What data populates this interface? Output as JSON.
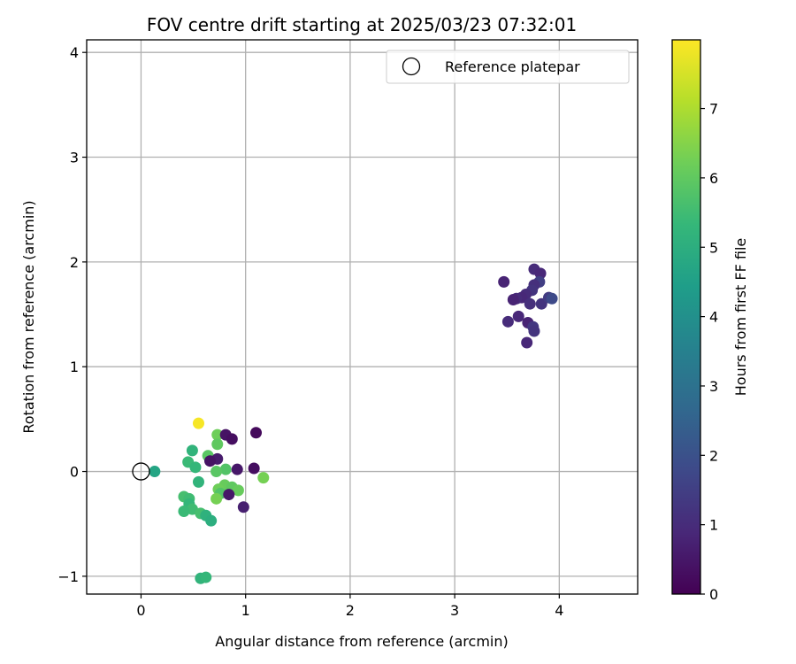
{
  "chart_data": {
    "type": "scatter",
    "title": "FOV centre drift starting at 2025/03/23 07:32:01",
    "xlabel": "Angular distance from reference (arcmin)",
    "ylabel": "Rotation from reference (arcmin)",
    "xlim": [
      -0.52,
      4.75
    ],
    "ylim": [
      -1.17,
      4.12
    ],
    "xticks": [
      0,
      1,
      2,
      3,
      4
    ],
    "yticks": [
      -1,
      0,
      1,
      2,
      3,
      4
    ],
    "grid": true,
    "legend": {
      "placement": "top-right",
      "label": "Reference platepar"
    },
    "reference_point": {
      "x": 0,
      "y": 0
    },
    "colorbar": {
      "label": "Hours from first FF file",
      "min": 0,
      "max": 7.99,
      "ticks": [
        0,
        1,
        2,
        3,
        4,
        5,
        6,
        7
      ],
      "colormap": "viridis"
    },
    "points": [
      {
        "x": 3.47,
        "y": 1.81,
        "c": 0.8
      },
      {
        "x": 3.76,
        "y": 1.93,
        "c": 1.0
      },
      {
        "x": 3.82,
        "y": 1.89,
        "c": 0.9
      },
      {
        "x": 3.81,
        "y": 1.81,
        "c": 1.5
      },
      {
        "x": 3.76,
        "y": 1.78,
        "c": 1.1
      },
      {
        "x": 3.74,
        "y": 1.73,
        "c": 1.2
      },
      {
        "x": 3.68,
        "y": 1.69,
        "c": 1.0
      },
      {
        "x": 3.64,
        "y": 1.66,
        "c": 0.9
      },
      {
        "x": 3.59,
        "y": 1.65,
        "c": 1.0
      },
      {
        "x": 3.56,
        "y": 1.64,
        "c": 0.8
      },
      {
        "x": 3.72,
        "y": 1.6,
        "c": 1.1
      },
      {
        "x": 3.83,
        "y": 1.6,
        "c": 1.2
      },
      {
        "x": 3.9,
        "y": 1.66,
        "c": 1.4
      },
      {
        "x": 3.93,
        "y": 1.65,
        "c": 1.8
      },
      {
        "x": 3.61,
        "y": 1.48,
        "c": 0.9
      },
      {
        "x": 3.51,
        "y": 1.43,
        "c": 1.0
      },
      {
        "x": 3.7,
        "y": 1.42,
        "c": 0.8
      },
      {
        "x": 3.75,
        "y": 1.38,
        "c": 1.3
      },
      {
        "x": 3.76,
        "y": 1.34,
        "c": 1.2
      },
      {
        "x": 3.69,
        "y": 1.23,
        "c": 0.9
      },
      {
        "x": 0.55,
        "y": 0.46,
        "c": 7.9
      },
      {
        "x": 0.73,
        "y": 0.35,
        "c": 6.2
      },
      {
        "x": 0.81,
        "y": 0.35,
        "c": 0.4
      },
      {
        "x": 0.87,
        "y": 0.31,
        "c": 0.3
      },
      {
        "x": 1.1,
        "y": 0.37,
        "c": 0.2
      },
      {
        "x": 0.73,
        "y": 0.26,
        "c": 6.0
      },
      {
        "x": 0.49,
        "y": 0.2,
        "c": 5.2
      },
      {
        "x": 0.64,
        "y": 0.15,
        "c": 5.9
      },
      {
        "x": 0.73,
        "y": 0.12,
        "c": 0.6
      },
      {
        "x": 0.66,
        "y": 0.1,
        "c": 0.4
      },
      {
        "x": 0.45,
        "y": 0.09,
        "c": 5.4
      },
      {
        "x": 0.52,
        "y": 0.04,
        "c": 5.3
      },
      {
        "x": 0.81,
        "y": 0.02,
        "c": 5.8
      },
      {
        "x": 0.92,
        "y": 0.02,
        "c": 0.5
      },
      {
        "x": 1.08,
        "y": 0.03,
        "c": 0.3
      },
      {
        "x": 0.13,
        "y": 0.0,
        "c": 4.7
      },
      {
        "x": 0.72,
        "y": 0.0,
        "c": 5.9
      },
      {
        "x": 1.17,
        "y": -0.06,
        "c": 6.3
      },
      {
        "x": 0.55,
        "y": -0.1,
        "c": 5.2
      },
      {
        "x": 0.8,
        "y": -0.13,
        "c": 6.1
      },
      {
        "x": 0.87,
        "y": -0.15,
        "c": 6.0
      },
      {
        "x": 0.74,
        "y": -0.17,
        "c": 6.2
      },
      {
        "x": 0.93,
        "y": -0.18,
        "c": 6.1
      },
      {
        "x": 0.76,
        "y": -0.21,
        "c": 5.8
      },
      {
        "x": 0.84,
        "y": -0.22,
        "c": 0.5
      },
      {
        "x": 0.41,
        "y": -0.24,
        "c": 5.6
      },
      {
        "x": 0.46,
        "y": -0.26,
        "c": 5.5
      },
      {
        "x": 0.72,
        "y": -0.26,
        "c": 6.3
      },
      {
        "x": 0.46,
        "y": -0.31,
        "c": 5.3
      },
      {
        "x": 0.98,
        "y": -0.34,
        "c": 0.7
      },
      {
        "x": 0.49,
        "y": -0.36,
        "c": 5.5
      },
      {
        "x": 0.41,
        "y": -0.38,
        "c": 5.4
      },
      {
        "x": 0.57,
        "y": -0.4,
        "c": 5.6
      },
      {
        "x": 0.62,
        "y": -0.42,
        "c": 5.1
      },
      {
        "x": 0.67,
        "y": -0.47,
        "c": 5.0
      },
      {
        "x": 0.57,
        "y": -1.02,
        "c": 5.2
      },
      {
        "x": 0.62,
        "y": -1.01,
        "c": 5.3
      }
    ]
  }
}
